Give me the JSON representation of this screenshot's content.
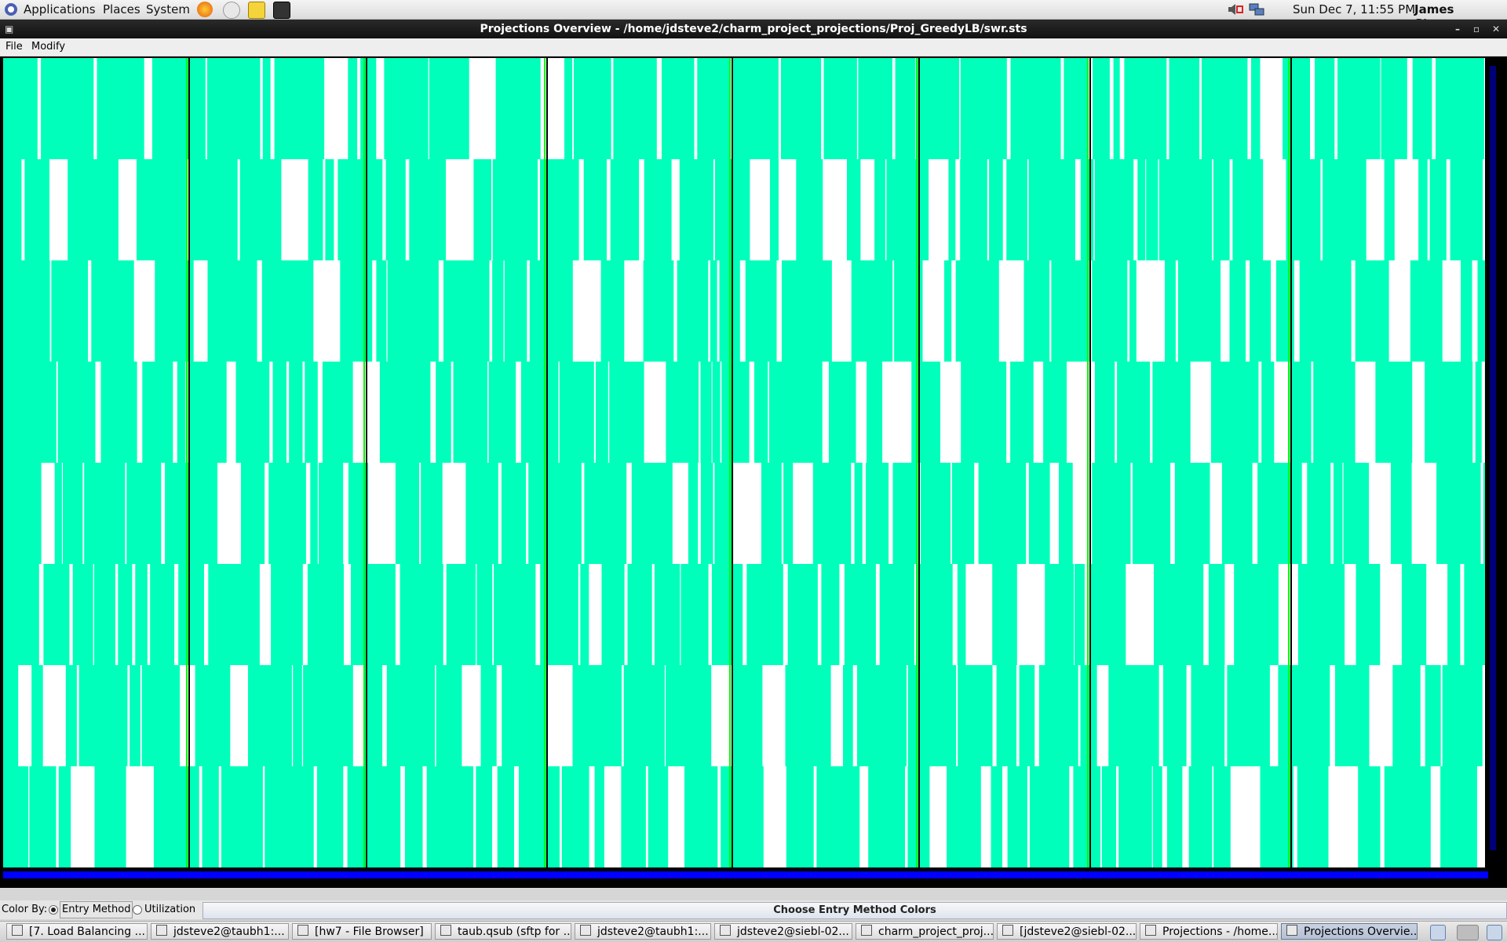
{
  "top_panel": {
    "menus": [
      "Applications",
      "Places",
      "System"
    ],
    "clock": "Sun Dec  7, 11:55 PM",
    "user": "James Stevens"
  },
  "window": {
    "title": "Projections Overview - /home/jdsteve2/charm_project_projections/Proj_GreedyLB/swr.sts"
  },
  "menu_bar": [
    "File",
    "Modify"
  ],
  "overview": {
    "processor_rows": 8,
    "busy_color": "#00ffbb",
    "idle_color": "#ffffff",
    "secondary_color": "#00ff00"
  },
  "bottom_bar": {
    "color_by_label": "Color By:",
    "options": [
      {
        "label": "Entry Method",
        "selected": true
      },
      {
        "label": "Utilization",
        "selected": false
      }
    ],
    "choose_button": "Choose Entry Method Colors"
  },
  "taskbar": {
    "items": [
      {
        "label": "[7. Load Balancing ..."
      },
      {
        "label": "jdsteve2@taubh1:..."
      },
      {
        "label": "[hw7 - File Browser]"
      },
      {
        "label": "taub.qsub (sftp for ..."
      },
      {
        "label": "jdsteve2@taubh1:..."
      },
      {
        "label": "jdsteve2@siebl-02..."
      },
      {
        "label": "charm_project_proj..."
      },
      {
        "label": "[jdsteve2@siebl-02..."
      },
      {
        "label": "Projections - /home..."
      },
      {
        "label": "Projections Overvie...",
        "active": true
      }
    ]
  }
}
